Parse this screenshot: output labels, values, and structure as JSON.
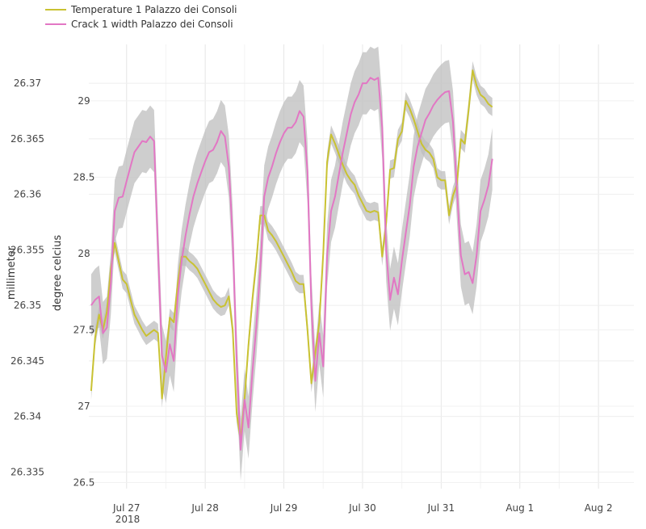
{
  "chart_data": {
    "type": "line",
    "title": "",
    "legend_position": "top-left",
    "grid": true,
    "x_axis": {
      "ticks": [
        "Jul 27",
        "Jul 28",
        "Jul 29",
        "Jul 30",
        "Jul 31",
        "Aug 1",
        "Aug 2"
      ],
      "year_label": "2018",
      "range_days": [
        -0.48,
        6.45
      ]
    },
    "y_axes": {
      "left": {
        "label": "millimeter",
        "ticks": [
          "26.335",
          "26.34",
          "26.345",
          "26.35",
          "26.355",
          "26.36",
          "26.365",
          "26.37"
        ],
        "range": [
          26.3335,
          26.3735
        ]
      },
      "right": {
        "label": "degree celcius",
        "ticks": [
          "26.5",
          "27",
          "27.5",
          "28",
          "28.5",
          "29"
        ],
        "range": [
          26.46,
          29.37
        ]
      }
    },
    "series": [
      {
        "name": "Temperature 1 Palazzo dei Consoli",
        "color": "#c9c232",
        "band_color": "#bdbdbd",
        "axis": "right",
        "points": [
          [
            -0.45,
            27.1
          ],
          [
            -0.4,
            27.45
          ],
          [
            -0.35,
            27.6
          ],
          [
            -0.3,
            27.5
          ],
          [
            -0.25,
            27.62
          ],
          [
            -0.2,
            27.9
          ],
          [
            -0.15,
            28.07
          ],
          [
            -0.1,
            27.95
          ],
          [
            -0.05,
            27.83
          ],
          [
            0,
            27.8
          ],
          [
            0.05,
            27.7
          ],
          [
            0.1,
            27.6
          ],
          [
            0.15,
            27.55
          ],
          [
            0.2,
            27.5
          ],
          [
            0.25,
            27.46
          ],
          [
            0.3,
            27.48
          ],
          [
            0.35,
            27.5
          ],
          [
            0.4,
            27.48
          ],
          [
            0.45,
            27.05
          ],
          [
            0.5,
            27.32
          ],
          [
            0.55,
            27.58
          ],
          [
            0.6,
            27.55
          ],
          [
            0.65,
            27.8
          ],
          [
            0.7,
            27.98
          ],
          [
            0.75,
            27.98
          ],
          [
            0.8,
            27.95
          ],
          [
            0.85,
            27.93
          ],
          [
            0.9,
            27.9
          ],
          [
            0.95,
            27.85
          ],
          [
            1.0,
            27.8
          ],
          [
            1.05,
            27.75
          ],
          [
            1.1,
            27.7
          ],
          [
            1.15,
            27.67
          ],
          [
            1.2,
            27.65
          ],
          [
            1.25,
            27.66
          ],
          [
            1.3,
            27.72
          ],
          [
            1.35,
            27.5
          ],
          [
            1.4,
            26.95
          ],
          [
            1.45,
            26.78
          ],
          [
            1.5,
            27.05
          ],
          [
            1.55,
            27.4
          ],
          [
            1.6,
            27.7
          ],
          [
            1.65,
            27.95
          ],
          [
            1.7,
            28.25
          ],
          [
            1.75,
            28.25
          ],
          [
            1.8,
            28.15
          ],
          [
            1.85,
            28.12
          ],
          [
            1.9,
            28.08
          ],
          [
            1.95,
            28.03
          ],
          [
            2.0,
            27.98
          ],
          [
            2.05,
            27.93
          ],
          [
            2.1,
            27.88
          ],
          [
            2.15,
            27.82
          ],
          [
            2.2,
            27.8
          ],
          [
            2.25,
            27.8
          ],
          [
            2.3,
            27.5
          ],
          [
            2.35,
            27.15
          ],
          [
            2.4,
            27.35
          ],
          [
            2.45,
            27.55
          ],
          [
            2.5,
            28.0
          ],
          [
            2.55,
            28.6
          ],
          [
            2.6,
            28.78
          ],
          [
            2.65,
            28.72
          ],
          [
            2.7,
            28.65
          ],
          [
            2.75,
            28.58
          ],
          [
            2.8,
            28.52
          ],
          [
            2.85,
            28.48
          ],
          [
            2.9,
            28.45
          ],
          [
            2.95,
            28.38
          ],
          [
            3.0,
            28.33
          ],
          [
            3.05,
            28.28
          ],
          [
            3.1,
            28.27
          ],
          [
            3.15,
            28.28
          ],
          [
            3.2,
            28.27
          ],
          [
            3.25,
            27.98
          ],
          [
            3.3,
            28.2
          ],
          [
            3.35,
            28.55
          ],
          [
            3.4,
            28.56
          ],
          [
            3.45,
            28.75
          ],
          [
            3.5,
            28.8
          ],
          [
            3.55,
            29.0
          ],
          [
            3.6,
            28.95
          ],
          [
            3.65,
            28.88
          ],
          [
            3.7,
            28.8
          ],
          [
            3.75,
            28.72
          ],
          [
            3.8,
            28.68
          ],
          [
            3.85,
            28.66
          ],
          [
            3.9,
            28.62
          ],
          [
            3.95,
            28.5
          ],
          [
            4.0,
            28.48
          ],
          [
            4.05,
            28.48
          ],
          [
            4.1,
            28.25
          ],
          [
            4.15,
            28.38
          ],
          [
            4.2,
            28.45
          ],
          [
            4.25,
            28.75
          ],
          [
            4.3,
            28.72
          ],
          [
            4.35,
            28.95
          ],
          [
            4.4,
            29.2
          ],
          [
            4.45,
            29.1
          ],
          [
            4.5,
            29.04
          ],
          [
            4.55,
            29.02
          ],
          [
            4.6,
            28.98
          ],
          [
            4.65,
            28.96
          ]
        ]
      },
      {
        "name": "Crack 1 width Palazzo dei Consoli",
        "color": "#e277c4",
        "band_color": "#bdbdbd",
        "axis": "left",
        "points": [
          [
            -0.45,
            26.35
          ],
          [
            -0.4,
            26.3505
          ],
          [
            -0.35,
            26.3508
          ],
          [
            -0.3,
            26.3475
          ],
          [
            -0.25,
            26.348
          ],
          [
            -0.2,
            26.352
          ],
          [
            -0.15,
            26.3585
          ],
          [
            -0.1,
            26.3597
          ],
          [
            -0.05,
            26.3598
          ],
          [
            0,
            26.3612
          ],
          [
            0.05,
            26.3625
          ],
          [
            0.1,
            26.3638
          ],
          [
            0.15,
            26.3643
          ],
          [
            0.2,
            26.3648
          ],
          [
            0.25,
            26.3647
          ],
          [
            0.3,
            26.3652
          ],
          [
            0.35,
            26.3648
          ],
          [
            0.4,
            26.355
          ],
          [
            0.45,
            26.3455
          ],
          [
            0.5,
            26.344
          ],
          [
            0.55,
            26.3465
          ],
          [
            0.6,
            26.345
          ],
          [
            0.65,
            26.3508
          ],
          [
            0.7,
            26.354
          ],
          [
            0.75,
            26.3563
          ],
          [
            0.8,
            26.3582
          ],
          [
            0.85,
            26.3598
          ],
          [
            0.9,
            26.361
          ],
          [
            0.95,
            26.362
          ],
          [
            1.0,
            26.363
          ],
          [
            1.05,
            26.3638
          ],
          [
            1.1,
            26.364
          ],
          [
            1.15,
            26.3647
          ],
          [
            1.2,
            26.3657
          ],
          [
            1.25,
            26.3652
          ],
          [
            1.3,
            26.3625
          ],
          [
            1.35,
            26.356
          ],
          [
            1.4,
            26.345
          ],
          [
            1.45,
            26.337
          ],
          [
            1.5,
            26.3415
          ],
          [
            1.55,
            26.339
          ],
          [
            1.6,
            26.344
          ],
          [
            1.65,
            26.3482
          ],
          [
            1.7,
            26.3532
          ],
          [
            1.75,
            26.3598
          ],
          [
            1.8,
            26.3615
          ],
          [
            1.85,
            26.3625
          ],
          [
            1.9,
            26.3637
          ],
          [
            1.95,
            26.3647
          ],
          [
            2.0,
            26.3655
          ],
          [
            2.05,
            26.366
          ],
          [
            2.1,
            26.366
          ],
          [
            2.15,
            26.3665
          ],
          [
            2.2,
            26.3675
          ],
          [
            2.25,
            26.367
          ],
          [
            2.3,
            26.362
          ],
          [
            2.35,
            26.35
          ],
          [
            2.4,
            26.3432
          ],
          [
            2.45,
            26.3475
          ],
          [
            2.5,
            26.3445
          ],
          [
            2.55,
            26.3545
          ],
          [
            2.6,
            26.3585
          ],
          [
            2.65,
            26.3598
          ],
          [
            2.7,
            26.3618
          ],
          [
            2.75,
            26.3638
          ],
          [
            2.8,
            26.3655
          ],
          [
            2.85,
            26.3672
          ],
          [
            2.9,
            26.3683
          ],
          [
            2.95,
            26.369
          ],
          [
            3.0,
            26.37
          ],
          [
            3.05,
            26.37
          ],
          [
            3.1,
            26.3705
          ],
          [
            3.15,
            26.3703
          ],
          [
            3.2,
            26.3705
          ],
          [
            3.25,
            26.366
          ],
          [
            3.3,
            26.355
          ],
          [
            3.35,
            26.3505
          ],
          [
            3.4,
            26.3525
          ],
          [
            3.45,
            26.351
          ],
          [
            3.5,
            26.354
          ],
          [
            3.55,
            26.3565
          ],
          [
            3.6,
            26.359
          ],
          [
            3.65,
            26.3625
          ],
          [
            3.7,
            26.3643
          ],
          [
            3.75,
            26.3655
          ],
          [
            3.8,
            26.3667
          ],
          [
            3.85,
            26.3673
          ],
          [
            3.9,
            26.368
          ],
          [
            3.95,
            26.3685
          ],
          [
            4.0,
            26.3689
          ],
          [
            4.05,
            26.3692
          ],
          [
            4.1,
            26.3693
          ],
          [
            4.15,
            26.3665
          ],
          [
            4.2,
            26.3605
          ],
          [
            4.25,
            26.3545
          ],
          [
            4.3,
            26.3528
          ],
          [
            4.35,
            26.353
          ],
          [
            4.4,
            26.352
          ],
          [
            4.45,
            26.3545
          ],
          [
            4.5,
            26.3585
          ],
          [
            4.55,
            26.3595
          ],
          [
            4.6,
            26.3608
          ],
          [
            4.65,
            26.3632
          ]
        ]
      }
    ]
  }
}
